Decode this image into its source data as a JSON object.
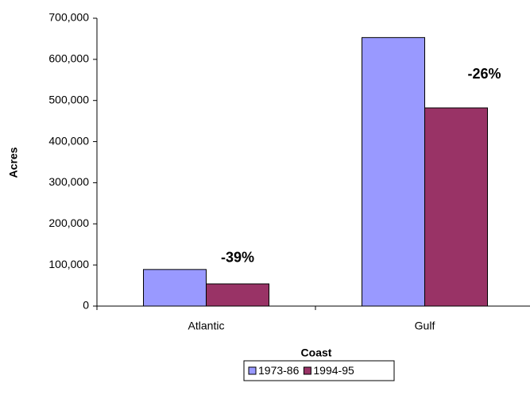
{
  "chart_data": {
    "type": "bar",
    "x_label": "Coast",
    "y_label": "Acres",
    "categories": [
      "Atlantic",
      "Gulf"
    ],
    "series": [
      {
        "name": "1973-86",
        "color": "#9999ff",
        "values": [
          89000,
          653000
        ]
      },
      {
        "name": "1994-95",
        "color": "#993366",
        "values": [
          54000,
          482000
        ]
      }
    ],
    "annotations": [
      "-39%",
      "-26%"
    ],
    "ylim": [
      0,
      700000
    ],
    "yticks": [
      0,
      {
        "value": 100000,
        "label": "100,000"
      },
      {
        "value": 200000,
        "label": "200,000"
      },
      {
        "value": 300000,
        "label": "300,000"
      },
      {
        "value": 400000,
        "label": "400,000"
      },
      {
        "value": 500000,
        "label": "500,000"
      },
      {
        "value": 600000,
        "label": "600,000"
      },
      {
        "value": 700000,
        "label": "700,000"
      }
    ],
    "legend": "bottom"
  }
}
